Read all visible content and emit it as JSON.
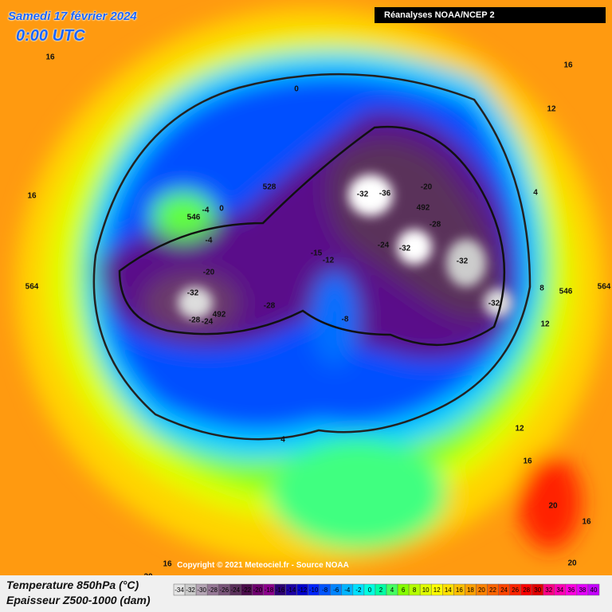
{
  "header": {
    "date": "Samedi 17 février 2024",
    "time": "0:00 UTC",
    "source": "Réanalyses NOAA/NCEP 2"
  },
  "footer": {
    "copyright": "Copyright © 2021 Meteociel.fr - Source NOAA",
    "legend_title_1": "Temperature 850hPa (°C)",
    "legend_title_2": "Epaisseur Z500-1000 (dam)"
  },
  "scale": {
    "values": [
      -34,
      -32,
      -30,
      -28,
      -26,
      -24,
      -22,
      -20,
      -18,
      -16,
      -14,
      -12,
      -10,
      -8,
      -6,
      -4,
      -2,
      0,
      2,
      4,
      6,
      8,
      10,
      12,
      14,
      16,
      18,
      20,
      22,
      24,
      26,
      28,
      30,
      32,
      34,
      36,
      38,
      40
    ],
    "colors": [
      "#e4e4e4",
      "#cccccc",
      "#b4a4b4",
      "#967896",
      "#785478",
      "#5a305a",
      "#4a0c4a",
      "#6e006e",
      "#8c008c",
      "#2c0074",
      "#1c00a4",
      "#0000cc",
      "#0024ff",
      "#0054ff",
      "#0084ff",
      "#00b4ff",
      "#00e0ff",
      "#00ffe0",
      "#00ffa4",
      "#44ff60",
      "#84ff00",
      "#b4ff00",
      "#e0ff00",
      "#ffff00",
      "#ffe000",
      "#ffc000",
      "#ffa000",
      "#ff8200",
      "#ff6400",
      "#ff4400",
      "#ff2400",
      "#ff0000",
      "#e00000",
      "#ff0084",
      "#ff00b4",
      "#ff00e0",
      "#e400ff",
      "#c400ff"
    ]
  },
  "map_labels": [
    "16",
    "16",
    "16",
    "12",
    "4",
    "8",
    "12",
    "16",
    "20",
    "16",
    "20",
    "16",
    "20",
    "0",
    "0",
    "-4",
    "-4",
    "-20",
    "-32",
    "-36",
    "-28",
    "-32",
    "-32",
    "-32",
    "-24",
    "-15",
    "-12",
    "-8",
    "-20",
    "-32",
    "-28",
    "-24",
    "-28",
    "492",
    "492",
    "528",
    "546",
    "546",
    "564",
    "564",
    "4",
    "12"
  ]
}
